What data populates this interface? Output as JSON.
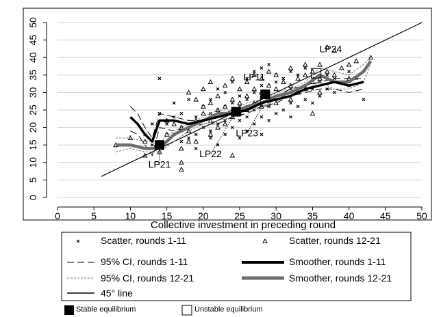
{
  "chart_data": {
    "type": "scatter",
    "title": "",
    "xlabel": "Collective investment in preceding round",
    "ylabel": "",
    "xlim": [
      0,
      50
    ],
    "ylim": [
      0,
      50
    ],
    "xticks": [
      0,
      5,
      10,
      15,
      20,
      25,
      30,
      35,
      40,
      45,
      50
    ],
    "yticks": [
      0,
      5,
      10,
      15,
      20,
      25,
      30,
      35,
      40,
      45,
      50
    ],
    "grid": "horizontal",
    "legend_position": "bottom",
    "series": [
      {
        "name": "Scatter, rounds 1-11",
        "marker": "x",
        "points": [
          [
            12,
            18
          ],
          [
            13,
            15
          ],
          [
            13,
            21
          ],
          [
            14,
            34
          ],
          [
            14,
            24
          ],
          [
            15,
            18
          ],
          [
            15,
            21
          ],
          [
            16,
            18
          ],
          [
            16,
            23
          ],
          [
            16,
            27
          ],
          [
            17,
            16
          ],
          [
            17,
            20
          ],
          [
            17,
            24
          ],
          [
            18,
            17
          ],
          [
            18,
            20
          ],
          [
            18,
            28
          ],
          [
            19,
            14
          ],
          [
            19,
            18
          ],
          [
            19,
            23
          ],
          [
            20,
            20
          ],
          [
            20,
            22
          ],
          [
            20,
            26
          ],
          [
            21,
            17
          ],
          [
            21,
            19
          ],
          [
            21,
            24
          ],
          [
            21,
            28
          ],
          [
            22,
            15
          ],
          [
            22,
            21
          ],
          [
            22,
            25
          ],
          [
            22,
            31
          ],
          [
            23,
            18
          ],
          [
            23,
            22
          ],
          [
            23,
            26
          ],
          [
            23,
            30
          ],
          [
            24,
            20
          ],
          [
            24,
            24
          ],
          [
            24,
            27
          ],
          [
            24,
            33
          ],
          [
            25,
            17
          ],
          [
            25,
            22
          ],
          [
            25,
            26
          ],
          [
            25,
            29
          ],
          [
            26,
            19
          ],
          [
            26,
            23
          ],
          [
            26,
            28
          ],
          [
            26,
            34
          ],
          [
            27,
            21
          ],
          [
            27,
            25
          ],
          [
            27,
            30
          ],
          [
            27,
            36
          ],
          [
            28,
            18
          ],
          [
            28,
            23
          ],
          [
            28,
            27
          ],
          [
            28,
            32
          ],
          [
            28,
            37
          ],
          [
            29,
            22
          ],
          [
            29,
            26
          ],
          [
            29,
            30
          ],
          [
            29,
            38
          ],
          [
            30,
            24
          ],
          [
            30,
            28
          ],
          [
            30,
            33
          ],
          [
            30,
            35
          ],
          [
            31,
            25
          ],
          [
            31,
            29
          ],
          [
            31,
            34
          ],
          [
            32,
            23
          ],
          [
            32,
            27
          ],
          [
            32,
            31
          ],
          [
            32,
            36
          ],
          [
            33,
            26
          ],
          [
            33,
            30
          ],
          [
            33,
            35
          ],
          [
            34,
            28
          ],
          [
            34,
            32
          ],
          [
            34,
            37
          ],
          [
            35,
            27
          ],
          [
            35,
            31
          ],
          [
            35,
            34
          ],
          [
            36,
            29
          ],
          [
            36,
            33
          ],
          [
            37,
            31
          ],
          [
            37,
            35
          ],
          [
            38,
            30
          ],
          [
            38,
            34
          ],
          [
            39,
            33
          ],
          [
            40,
            32
          ],
          [
            40,
            36
          ],
          [
            41,
            34
          ],
          [
            42,
            28
          ]
        ]
      },
      {
        "name": "Scatter, rounds 12-21",
        "marker": "triangle",
        "points": [
          [
            8,
            15
          ],
          [
            10,
            17
          ],
          [
            12,
            16
          ],
          [
            12,
            12
          ],
          [
            14,
            13
          ],
          [
            15,
            18
          ],
          [
            15,
            22
          ],
          [
            16,
            21
          ],
          [
            17,
            8
          ],
          [
            17,
            10
          ],
          [
            17,
            14
          ],
          [
            17,
            20
          ],
          [
            18,
            16
          ],
          [
            18,
            19
          ],
          [
            18,
            30
          ],
          [
            19,
            16
          ],
          [
            19,
            22
          ],
          [
            19,
            28
          ],
          [
            20,
            24
          ],
          [
            20,
            26
          ],
          [
            20,
            31
          ],
          [
            21,
            18
          ],
          [
            21,
            22
          ],
          [
            21,
            27
          ],
          [
            21,
            33
          ],
          [
            22,
            20
          ],
          [
            22,
            25
          ],
          [
            22,
            29
          ],
          [
            23,
            21
          ],
          [
            23,
            26
          ],
          [
            23,
            32
          ],
          [
            24,
            12
          ],
          [
            24,
            23
          ],
          [
            24,
            28
          ],
          [
            24,
            34
          ],
          [
            25,
            24
          ],
          [
            25,
            27
          ],
          [
            25,
            31
          ],
          [
            26,
            25
          ],
          [
            26,
            29
          ],
          [
            26,
            33
          ],
          [
            27,
            27
          ],
          [
            27,
            31
          ],
          [
            27,
            35
          ],
          [
            28,
            26
          ],
          [
            28,
            30
          ],
          [
            28,
            34
          ],
          [
            29,
            28
          ],
          [
            29,
            32
          ],
          [
            29,
            36
          ],
          [
            30,
            27
          ],
          [
            30,
            31
          ],
          [
            30,
            35
          ],
          [
            31,
            29
          ],
          [
            31,
            33
          ],
          [
            32,
            28
          ],
          [
            32,
            32
          ],
          [
            32,
            37
          ],
          [
            33,
            30
          ],
          [
            33,
            34
          ],
          [
            34,
            31
          ],
          [
            34,
            35
          ],
          [
            34,
            38
          ],
          [
            35,
            24
          ],
          [
            35,
            33
          ],
          [
            35,
            36
          ],
          [
            36,
            30
          ],
          [
            36,
            34
          ],
          [
            36,
            38
          ],
          [
            37,
            36
          ],
          [
            37,
            43
          ],
          [
            38,
            35
          ],
          [
            38,
            42
          ],
          [
            39,
            37
          ],
          [
            40,
            34
          ],
          [
            40,
            38
          ],
          [
            41,
            39
          ],
          [
            43,
            40
          ]
        ]
      },
      {
        "name": "95% CI, rounds 1-11",
        "style": "long-dash",
        "lines": [
          [
            [
              10,
              26
            ],
            [
              11,
              24
            ],
            [
              12,
              20
            ],
            [
              13,
              17
            ],
            [
              14,
              24
            ],
            [
              16,
              23
            ],
            [
              18,
              22
            ],
            [
              20,
              22
            ],
            [
              22,
              23
            ],
            [
              24,
              25
            ],
            [
              26,
              26
            ],
            [
              28,
              28
            ],
            [
              30,
              29
            ],
            [
              32,
              31
            ],
            [
              34,
              32
            ],
            [
              36,
              33
            ],
            [
              38,
              34
            ],
            [
              40,
              34
            ],
            [
              42,
              34
            ]
          ],
          [
            [
              10,
              19
            ],
            [
              11,
              18
            ],
            [
              12,
              15
            ],
            [
              13,
              12
            ],
            [
              14,
              20
            ],
            [
              16,
              19
            ],
            [
              18,
              20
            ],
            [
              20,
              21
            ],
            [
              22,
              21
            ],
            [
              24,
              23
            ],
            [
              26,
              24
            ],
            [
              28,
              26
            ],
            [
              30,
              27
            ],
            [
              32,
              29
            ],
            [
              34,
              30
            ],
            [
              36,
              31
            ],
            [
              38,
              31
            ],
            [
              40,
              30
            ],
            [
              42,
              31
            ]
          ]
        ]
      },
      {
        "name": "Smoother, rounds 1-11",
        "style": "thick-black",
        "points": [
          [
            10,
            23
          ],
          [
            11,
            21
          ],
          [
            12,
            18
          ],
          [
            13,
            16
          ],
          [
            14,
            22
          ],
          [
            16,
            22
          ],
          [
            18,
            21
          ],
          [
            20,
            22
          ],
          [
            22,
            23
          ],
          [
            24,
            24
          ],
          [
            26,
            25
          ],
          [
            28,
            27
          ],
          [
            30,
            28
          ],
          [
            32,
            29
          ],
          [
            34,
            31
          ],
          [
            36,
            32
          ],
          [
            38,
            33
          ],
          [
            40,
            32
          ],
          [
            42,
            33
          ]
        ]
      },
      {
        "name": "95% CI, rounds 12-21",
        "style": "short-dash",
        "lines": [
          [
            [
              8,
              17
            ],
            [
              10,
              17
            ],
            [
              12,
              16
            ],
            [
              14,
              16
            ],
            [
              16,
              19
            ],
            [
              18,
              21
            ],
            [
              20,
              23
            ],
            [
              22,
              25
            ],
            [
              24,
              25
            ],
            [
              26,
              27
            ],
            [
              28,
              28
            ],
            [
              30,
              30
            ],
            [
              32,
              31
            ],
            [
              34,
              33
            ],
            [
              36,
              37
            ],
            [
              38,
              36
            ],
            [
              40,
              35
            ],
            [
              42,
              38
            ],
            [
              43,
              40
            ]
          ],
          [
            [
              8,
              13
            ],
            [
              10,
              14
            ],
            [
              12,
              13
            ],
            [
              14,
              13
            ],
            [
              16,
              16
            ],
            [
              18,
              19
            ],
            [
              20,
              21
            ],
            [
              22,
              22
            ],
            [
              24,
              23
            ],
            [
              26,
              25
            ],
            [
              28,
              26
            ],
            [
              30,
              28
            ],
            [
              32,
              29
            ],
            [
              34,
              31
            ],
            [
              36,
              33
            ],
            [
              38,
              31
            ],
            [
              40,
              31
            ],
            [
              42,
              33
            ],
            [
              43,
              38
            ]
          ]
        ]
      },
      {
        "name": "Smoother, rounds 12-21",
        "style": "thick-gray",
        "points": [
          [
            8,
            15
          ],
          [
            10,
            15
          ],
          [
            12,
            14
          ],
          [
            14,
            14
          ],
          [
            16,
            18
          ],
          [
            18,
            20
          ],
          [
            20,
            22
          ],
          [
            22,
            24
          ],
          [
            24,
            24
          ],
          [
            26,
            26
          ],
          [
            28,
            27
          ],
          [
            30,
            29
          ],
          [
            32,
            30
          ],
          [
            34,
            32
          ],
          [
            36,
            35
          ],
          [
            38,
            33
          ],
          [
            40,
            33
          ],
          [
            42,
            36
          ],
          [
            43,
            39
          ]
        ]
      },
      {
        "name": "45° line",
        "style": "thin-black",
        "points": [
          [
            6,
            6
          ],
          [
            50,
            50
          ]
        ]
      }
    ],
    "equilibria": [
      {
        "label": "LP21",
        "x": 14,
        "y": 15,
        "type": "stable",
        "label_pos": [
          14,
          8.5
        ],
        "leader": "dotted"
      },
      {
        "label": "LP22",
        "x": 24.5,
        "y": 24.5,
        "type": "stable",
        "label_pos": [
          21,
          11.5
        ],
        "leader": "dotted"
      },
      {
        "label": "LP11",
        "x": 28.5,
        "y": 29.5,
        "type": "stable",
        "label_pos": [
          27,
          33.5
        ],
        "leader": "none"
      },
      {
        "label": "LP23",
        "x": 28.5,
        "y": 27.5,
        "type": "unstable",
        "label_pos": [
          26,
          17.5
        ],
        "leader": "dotted"
      },
      {
        "label": "LP24",
        "x": 35.5,
        "y": 35.5,
        "type": "unstable",
        "label_pos": [
          37.5,
          41.5
        ],
        "leader": "none"
      }
    ]
  },
  "legend": {
    "items": [
      {
        "label": "Scatter, rounds 1-11"
      },
      {
        "label": "Scatter, rounds 12-21"
      },
      {
        "label": "95% CI, rounds 1-11"
      },
      {
        "label": "Smoother, rounds 1-11"
      },
      {
        "label": "95% CI, rounds 12-21"
      },
      {
        "label": "Smoother, rounds 12-21"
      },
      {
        "label": "45° line"
      }
    ]
  },
  "bottom_legend": {
    "stable": "Stable equilibrium",
    "unstable": "Unstable equilibrium"
  },
  "colors": {
    "smoother_rounds_12_21": "#6e6e6e",
    "grid": "#d0d0d0",
    "ci_rounds_12_21": "#777777",
    "text": "#000000"
  }
}
